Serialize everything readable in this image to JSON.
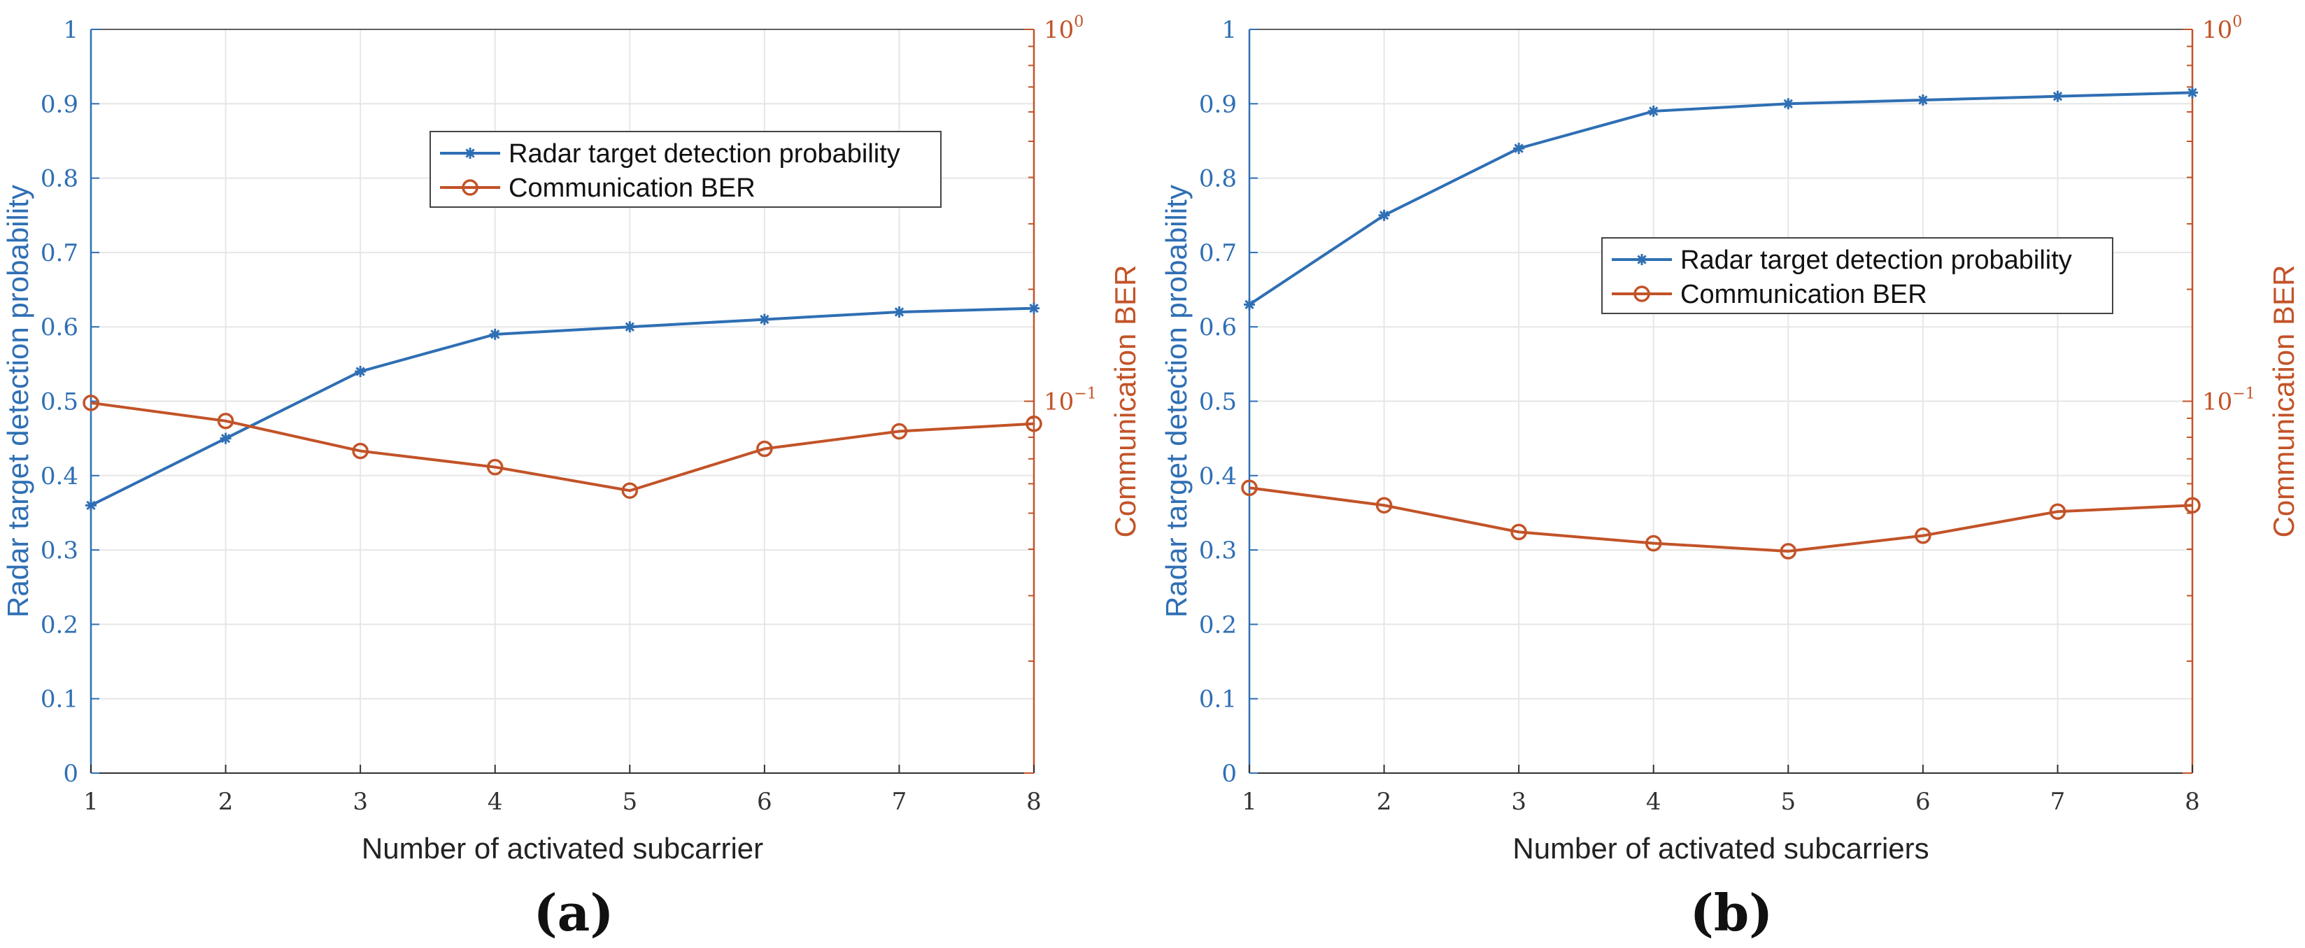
{
  "colors": {
    "radar": "#2f6fb4",
    "comm": "#c25328",
    "grid": "#e6e6e6",
    "axis": "#333333"
  },
  "chart_data": [
    {
      "type": "line",
      "panel_label": "(a)",
      "xlabel": "Number of activated subcarrier",
      "ylabel_left": "Radar target detection probability",
      "ylabel_right": "Communication BER",
      "x": [
        1,
        2,
        3,
        4,
        5,
        6,
        7,
        8
      ],
      "xlim": [
        1,
        8
      ],
      "ylim_left": [
        0,
        1
      ],
      "yscale_right": "log",
      "ylim_right": [
        0.01,
        1
      ],
      "left_ticks": [
        "0",
        "0.1",
        "0.2",
        "0.3",
        "0.4",
        "0.5",
        "0.6",
        "0.7",
        "0.8",
        "0.9",
        "1"
      ],
      "right_ticks": [
        {
          "base": "10",
          "exp": "0",
          "value": 1
        },
        {
          "base": "10",
          "exp": "−1",
          "value": 0.1
        }
      ],
      "legend": {
        "position": "top-right",
        "entries": [
          "Radar target detection probability",
          "Communication BER"
        ]
      },
      "series": [
        {
          "name": "Radar target detection probability",
          "axis": "left",
          "marker": "asterisk",
          "values": [
            0.36,
            0.45,
            0.54,
            0.59,
            0.6,
            0.61,
            0.62,
            0.625
          ]
        },
        {
          "name": "Communication BER",
          "axis": "right",
          "marker": "circle",
          "values": [
            0.099,
            0.0885,
            0.0735,
            0.0665,
            0.0575,
            0.0745,
            0.083,
            0.087
          ]
        }
      ]
    },
    {
      "type": "line",
      "panel_label": "(b)",
      "xlabel": "Number of activated subcarriers",
      "ylabel_left": "Radar target detection probability",
      "ylabel_right": "Communication BER",
      "x": [
        1,
        2,
        3,
        4,
        5,
        6,
        7,
        8
      ],
      "xlim": [
        1,
        8
      ],
      "ylim_left": [
        0,
        1
      ],
      "yscale_right": "log",
      "ylim_right": [
        0.01,
        1
      ],
      "left_ticks": [
        "0",
        "0.1",
        "0.2",
        "0.3",
        "0.4",
        "0.5",
        "0.6",
        "0.7",
        "0.8",
        "0.9",
        "1"
      ],
      "right_ticks": [
        {
          "base": "10",
          "exp": "0",
          "value": 1
        },
        {
          "base": "10",
          "exp": "−1",
          "value": 0.1
        }
      ],
      "legend": {
        "position": "center-right",
        "entries": [
          "Radar target detection probability",
          "Communication BER"
        ]
      },
      "series": [
        {
          "name": "Radar target detection probability",
          "axis": "left",
          "marker": "asterisk",
          "values": [
            0.63,
            0.75,
            0.84,
            0.89,
            0.9,
            0.905,
            0.91,
            0.915
          ]
        },
        {
          "name": "Communication BER",
          "axis": "right",
          "marker": "circle",
          "values": [
            0.0585,
            0.0525,
            0.0445,
            0.0415,
            0.0395,
            0.0435,
            0.0505,
            0.0525
          ]
        }
      ]
    }
  ]
}
